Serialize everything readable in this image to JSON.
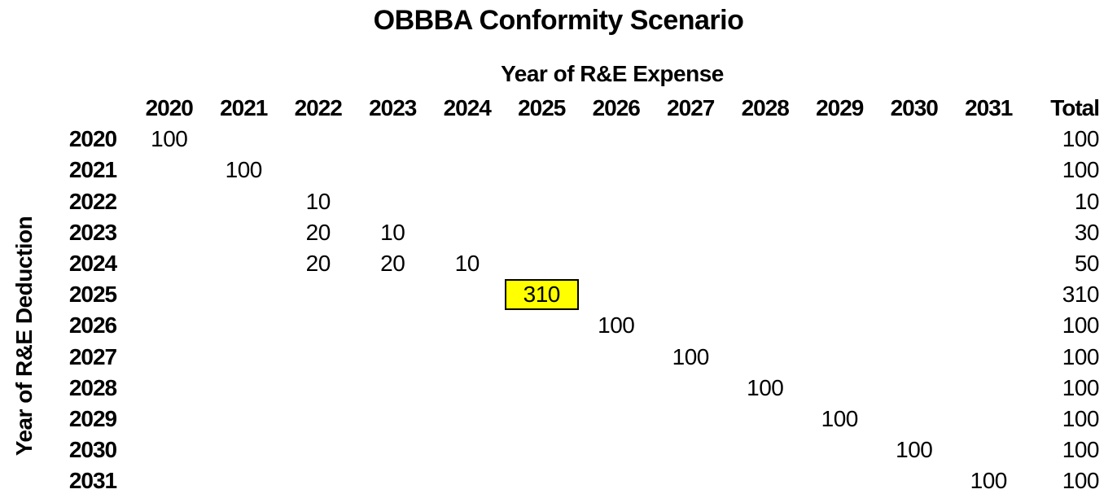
{
  "title": "OBBBA Conformity Scenario",
  "axes": {
    "column_axis": "Year of R&E Expense",
    "row_axis": "Year of R&E Deduction"
  },
  "highlight": {
    "deduction_year": "2025",
    "expense_year": "2025",
    "value": "310",
    "fill_color": "#FFFF00",
    "border_color": "#000000"
  },
  "chart_data": {
    "type": "table",
    "title": "OBBBA Conformity Scenario",
    "column_axis_label": "Year of R&E Expense",
    "row_axis_label": "Year of R&E Deduction",
    "year_columns": [
      "2020",
      "2021",
      "2022",
      "2023",
      "2024",
      "2025",
      "2026",
      "2027",
      "2028",
      "2029",
      "2030",
      "2031"
    ],
    "total_label": "Total",
    "rows": [
      {
        "year": "2020",
        "cells": [
          "100",
          "",
          "",
          "",
          "",
          "",
          "",
          "",
          "",
          "",
          "",
          ""
        ],
        "total": "100"
      },
      {
        "year": "2021",
        "cells": [
          "",
          "100",
          "",
          "",
          "",
          "",
          "",
          "",
          "",
          "",
          "",
          ""
        ],
        "total": "100"
      },
      {
        "year": "2022",
        "cells": [
          "",
          "",
          "10",
          "",
          "",
          "",
          "",
          "",
          "",
          "",
          "",
          ""
        ],
        "total": "10"
      },
      {
        "year": "2023",
        "cells": [
          "",
          "",
          "20",
          "10",
          "",
          "",
          "",
          "",
          "",
          "",
          "",
          ""
        ],
        "total": "30"
      },
      {
        "year": "2024",
        "cells": [
          "",
          "",
          "20",
          "20",
          "10",
          "",
          "",
          "",
          "",
          "",
          "",
          ""
        ],
        "total": "50"
      },
      {
        "year": "2025",
        "cells": [
          "",
          "",
          "",
          "",
          "",
          "310",
          "",
          "",
          "",
          "",
          "",
          ""
        ],
        "total": "310",
        "highlight_col_index": 5
      },
      {
        "year": "2026",
        "cells": [
          "",
          "",
          "",
          "",
          "",
          "",
          "100",
          "",
          "",
          "",
          "",
          ""
        ],
        "total": "100"
      },
      {
        "year": "2027",
        "cells": [
          "",
          "",
          "",
          "",
          "",
          "",
          "",
          "100",
          "",
          "",
          "",
          ""
        ],
        "total": "100"
      },
      {
        "year": "2028",
        "cells": [
          "",
          "",
          "",
          "",
          "",
          "",
          "",
          "",
          "100",
          "",
          "",
          ""
        ],
        "total": "100"
      },
      {
        "year": "2029",
        "cells": [
          "",
          "",
          "",
          "",
          "",
          "",
          "",
          "",
          "",
          "100",
          "",
          ""
        ],
        "total": "100"
      },
      {
        "year": "2030",
        "cells": [
          "",
          "",
          "",
          "",
          "",
          "",
          "",
          "",
          "",
          "",
          "100",
          ""
        ],
        "total": "100"
      },
      {
        "year": "2031",
        "cells": [
          "",
          "",
          "",
          "",
          "",
          "",
          "",
          "",
          "",
          "",
          "",
          "100"
        ],
        "total": "100"
      }
    ]
  }
}
